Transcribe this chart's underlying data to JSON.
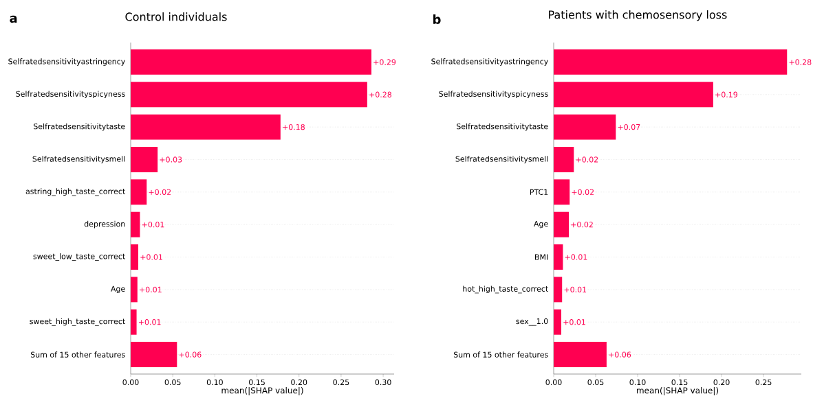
{
  "chart_data": [
    {
      "type": "bar",
      "orientation": "horizontal",
      "title": "Control individuals",
      "xlabel": "mean(|SHAP value|)",
      "annotations": [
        "a"
      ],
      "color": "#ff0051",
      "grid": "y",
      "categories": [
        "Selfratedsensitivityastringency",
        "Selfratedsensitivityspicyness",
        "Selfratedsensitivitytaste",
        "Selfratedsensitivitysmell",
        "astring_high_taste_correct",
        "depression",
        "sweet_low_taste_correct",
        "Age",
        "sweet_high_taste_correct",
        "Sum of 15 other features"
      ],
      "values": [
        0.286,
        0.281,
        0.178,
        0.032,
        0.019,
        0.011,
        0.009,
        0.008,
        0.007,
        0.055
      ],
      "value_labels": [
        "+0.29",
        "+0.28",
        "+0.18",
        "+0.03",
        "+0.02",
        "+0.01",
        "+0.01",
        "+0.01",
        "+0.01",
        "+0.06"
      ],
      "xlim": [
        0,
        0.313
      ],
      "xticks": [
        {
          "value": 0,
          "label": "0.00"
        },
        {
          "value": 0.05,
          "label": "0.05"
        },
        {
          "value": 0.1,
          "label": "0.10"
        },
        {
          "value": 0.15,
          "label": "0.15"
        },
        {
          "value": 0.2,
          "label": "0.20"
        },
        {
          "value": 0.25,
          "label": "0.25"
        },
        {
          "value": 0.3,
          "label": "0.30"
        }
      ]
    },
    {
      "type": "bar",
      "orientation": "horizontal",
      "title": "Patients with chemosensory loss",
      "xlabel": "mean(|SHAP value|)",
      "annotations": [
        "b"
      ],
      "color": "#ff0051",
      "grid": "y",
      "categories": [
        "Selfratedsensitivityastringency",
        "Selfratedsensitivityspicyness",
        "Selfratedsensitivitytaste",
        "Selfratedsensitivitysmell",
        "PTC1",
        "Age",
        "BMI",
        "hot_high_taste_correct",
        "sex__1.0",
        "Sum of 15 other features"
      ],
      "values": [
        0.278,
        0.19,
        0.074,
        0.024,
        0.019,
        0.018,
        0.011,
        0.01,
        0.009,
        0.063
      ],
      "value_labels": [
        "+0.28",
        "+0.19",
        "+0.07",
        "+0.02",
        "+0.02",
        "+0.02",
        "+0.01",
        "+0.01",
        "+0.01",
        "+0.06"
      ],
      "xlim": [
        0,
        0.295
      ],
      "xticks": [
        {
          "value": 0,
          "label": "0.00"
        },
        {
          "value": 0.05,
          "label": "0.05"
        },
        {
          "value": 0.1,
          "label": "0.10"
        },
        {
          "value": 0.15,
          "label": "0.15"
        },
        {
          "value": 0.2,
          "label": "0.20"
        },
        {
          "value": 0.25,
          "label": "0.25"
        }
      ]
    }
  ]
}
